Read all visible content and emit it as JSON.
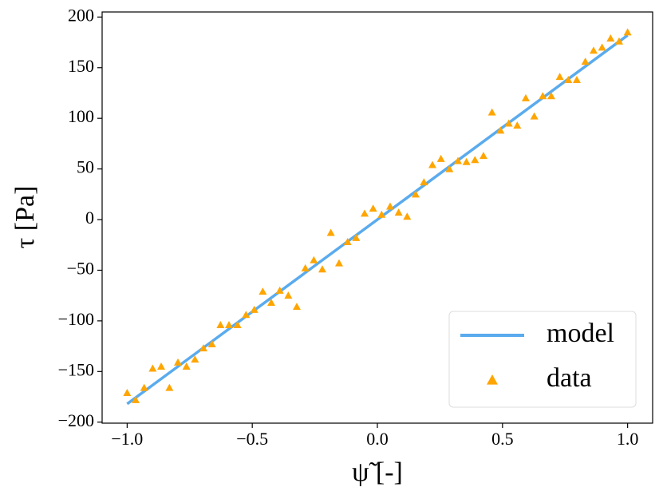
{
  "chart_data": {
    "type": "line_scatter",
    "xlabel": "ψ̃ [-]",
    "ylabel": "τ [Pa]",
    "xlim": [
      -1.1,
      1.1
    ],
    "ylim": [
      -201,
      205
    ],
    "xticks": [
      {
        "value": -1.0,
        "label": "−1.0"
      },
      {
        "value": -0.5,
        "label": "−0.5"
      },
      {
        "value": 0.0,
        "label": "0.0"
      },
      {
        "value": 0.5,
        "label": "0.5"
      },
      {
        "value": 1.0,
        "label": "1.0"
      }
    ],
    "yticks": [
      {
        "value": -200,
        "label": "−200"
      },
      {
        "value": -150,
        "label": "−150"
      },
      {
        "value": -100,
        "label": "−100"
      },
      {
        "value": -50,
        "label": "−50"
      },
      0,
      50,
      100,
      150,
      200
    ],
    "legend": "lower right",
    "series": [
      {
        "name": "model",
        "kind": "line",
        "color": "#5aabee",
        "x": [
          -1.0,
          1.0
        ],
        "values": [
          -182,
          182
        ]
      },
      {
        "name": "data",
        "kind": "scatter",
        "color": "#ffa500",
        "x": [
          -1.0,
          -0.966,
          -0.932,
          -0.898,
          -0.864,
          -0.831,
          -0.797,
          -0.763,
          -0.729,
          -0.695,
          -0.661,
          -0.627,
          -0.593,
          -0.559,
          -0.525,
          -0.492,
          -0.458,
          -0.424,
          -0.39,
          -0.356,
          -0.322,
          -0.288,
          -0.254,
          -0.22,
          -0.186,
          -0.153,
          -0.119,
          -0.085,
          -0.051,
          -0.017,
          0.017,
          0.051,
          0.085,
          0.119,
          0.153,
          0.186,
          0.22,
          0.254,
          0.288,
          0.322,
          0.356,
          0.39,
          0.424,
          0.458,
          0.492,
          0.525,
          0.559,
          0.593,
          0.627,
          0.661,
          0.695,
          0.729,
          0.763,
          0.797,
          0.831,
          0.864,
          0.898,
          0.932,
          0.966,
          1.0
        ],
        "values": [
          -171,
          -178,
          -166,
          -147,
          -145,
          -166,
          -141,
          -145,
          -138,
          -127,
          -123,
          -104,
          -104,
          -104,
          -94,
          -89,
          -71,
          -82,
          -70,
          -75,
          -86,
          -48,
          -40,
          -49,
          -13,
          -43,
          -22,
          -18,
          6,
          11,
          5,
          13,
          7,
          3,
          25,
          37,
          54,
          60,
          50,
          58,
          57,
          59,
          63,
          106,
          88,
          95,
          93,
          120,
          102,
          122,
          122,
          141,
          138,
          138,
          156,
          167,
          170,
          179,
          176,
          185
        ]
      }
    ]
  }
}
